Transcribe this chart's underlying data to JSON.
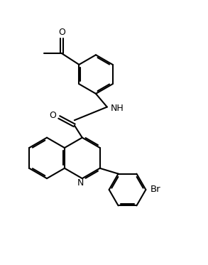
{
  "background_color": "#ffffff",
  "line_color": "#000000",
  "line_width": 1.5,
  "font_size": 9,
  "fig_width": 2.93,
  "fig_height": 3.73,
  "dpi": 100,
  "labels": {
    "O_acetyl": "O",
    "NH": "NH",
    "O_amide": "O",
    "N_quinoline": "N",
    "Br": "Br"
  }
}
